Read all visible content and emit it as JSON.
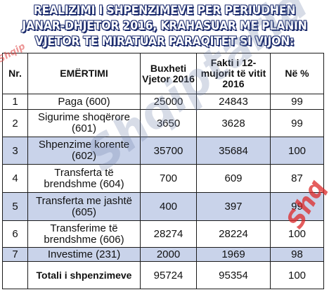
{
  "title": {
    "line1": "REALIZIMI I SHPENZIMEVE PER PERIUDHEN",
    "line2": "JANAR-DHJETOR 2016, KRAHASUAR ME PLANIN",
    "line3": "VJETOR TE MIRATUAR PARAQITET SI VIJON:"
  },
  "table": {
    "headers": {
      "nr": "Nr.",
      "name": "EMËRTIMI",
      "budget": "Buxheti Vjetor 2016",
      "actual": "Fakti i 12-mujorit të vitit 2016",
      "percent": "Në %"
    },
    "rows": [
      {
        "nr": "1",
        "name": "Paga (600)",
        "budget": "25000",
        "actual": "24843",
        "percent": "99"
      },
      {
        "nr": "2",
        "name": "Sigurime shoqërore (601)",
        "budget": "3650",
        "actual": "3628",
        "percent": "99"
      },
      {
        "nr": "3",
        "name": "Shpenzime korente (602)",
        "budget": "35700",
        "actual": "35684",
        "percent": "100"
      },
      {
        "nr": "4",
        "name": "Transferta të brendshme (604)",
        "budget": "700",
        "actual": "609",
        "percent": "87"
      },
      {
        "nr": "5",
        "name": "Transferta me jashtë (605)",
        "budget": "400",
        "actual": "397",
        "percent": "99"
      },
      {
        "nr": "6",
        "name": "Transferime të brendshme (606)",
        "budget": "28274",
        "actual": "28224",
        "percent": "100"
      },
      {
        "nr": "7",
        "name": "Investime (231)",
        "budget": "2000",
        "actual": "1969",
        "percent": "98"
      }
    ],
    "total": {
      "label": "Totali i shpenzimeve",
      "budget": "95724",
      "actual": "95354",
      "percent": "100"
    }
  },
  "watermark": {
    "main": "Shqiptaria",
    "side": "Shq",
    "corner": "Shqip"
  }
}
